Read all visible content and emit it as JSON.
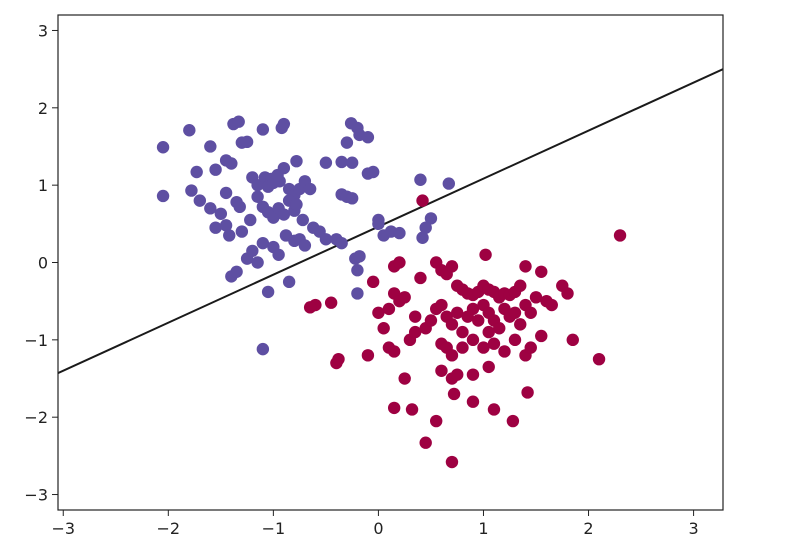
{
  "chart_data": {
    "type": "scatter",
    "title": "",
    "xlabel": "",
    "ylabel": "",
    "xlim": [
      -3.05,
      3.28
    ],
    "ylim": [
      -3.2,
      3.2
    ],
    "xticks": [
      -3,
      -2,
      -1,
      0,
      1,
      2,
      3
    ],
    "yticks": [
      -3,
      -2,
      -1,
      0,
      1,
      2,
      3
    ],
    "xtick_labels": [
      "−3",
      "−2",
      "−1",
      "0",
      "1",
      "2",
      "3"
    ],
    "ytick_labels": [
      "−3",
      "−2",
      "−1",
      "0",
      "1",
      "2",
      "3"
    ],
    "grid": false,
    "legend": "none",
    "decision_boundary": {
      "x": [
        -3.05,
        3.28
      ],
      "y": [
        -1.43,
        2.5
      ],
      "color": "#1a1a1a"
    },
    "series": [
      {
        "color": "#5e4fa2",
        "points": [
          [
            -2.05,
            1.49
          ],
          [
            -2.05,
            0.86
          ],
          [
            -1.8,
            1.71
          ],
          [
            -1.73,
            1.17
          ],
          [
            -1.6,
            1.5
          ],
          [
            -1.55,
            1.2
          ],
          [
            -1.45,
            1.32
          ],
          [
            -1.4,
            1.28
          ],
          [
            -1.38,
            1.79
          ],
          [
            -1.33,
            1.82
          ],
          [
            -1.3,
            1.55
          ],
          [
            -1.25,
            1.56
          ],
          [
            -1.1,
            1.72
          ],
          [
            -0.92,
            1.74
          ],
          [
            -0.9,
            1.79
          ],
          [
            -0.78,
            1.31
          ],
          [
            -0.9,
            1.22
          ],
          [
            -0.94,
            1.05
          ],
          [
            -0.5,
            1.29
          ],
          [
            -0.35,
            1.3
          ],
          [
            -0.26,
            1.8
          ],
          [
            -0.2,
            1.74
          ],
          [
            -0.18,
            1.65
          ],
          [
            -0.1,
            1.62
          ],
          [
            -0.3,
            1.55
          ],
          [
            -0.25,
            1.29
          ],
          [
            -0.1,
            1.15
          ],
          [
            -0.05,
            1.17
          ],
          [
            -1.2,
            1.1
          ],
          [
            -1.15,
            1.0
          ],
          [
            -1.08,
            1.1
          ],
          [
            -1.05,
            0.98
          ],
          [
            -1.02,
            1.08
          ],
          [
            -1.0,
            1.03
          ],
          [
            -0.96,
            1.13
          ],
          [
            -0.85,
            0.95
          ],
          [
            -0.8,
            0.87
          ],
          [
            -0.75,
            0.95
          ],
          [
            -0.7,
            1.05
          ],
          [
            -0.65,
            0.95
          ],
          [
            -1.78,
            0.93
          ],
          [
            -1.7,
            0.8
          ],
          [
            -1.6,
            0.7
          ],
          [
            -1.5,
            0.63
          ],
          [
            -1.45,
            0.9
          ],
          [
            -1.35,
            0.78
          ],
          [
            -1.32,
            0.72
          ],
          [
            -1.22,
            0.55
          ],
          [
            -1.15,
            0.85
          ],
          [
            -1.1,
            0.72
          ],
          [
            -1.05,
            0.65
          ],
          [
            -1.0,
            0.58
          ],
          [
            -0.95,
            0.7
          ],
          [
            -0.9,
            0.62
          ],
          [
            -0.85,
            0.8
          ],
          [
            -0.8,
            0.67
          ],
          [
            -0.78,
            0.75
          ],
          [
            -0.72,
            0.55
          ],
          [
            -0.62,
            0.45
          ],
          [
            -0.56,
            0.4
          ],
          [
            -0.5,
            0.3
          ],
          [
            -0.35,
            0.88
          ],
          [
            -0.3,
            0.85
          ],
          [
            -0.25,
            0.83
          ],
          [
            -1.55,
            0.45
          ],
          [
            -1.45,
            0.48
          ],
          [
            -1.42,
            0.35
          ],
          [
            -1.3,
            0.4
          ],
          [
            -1.25,
            0.05
          ],
          [
            -1.2,
            0.15
          ],
          [
            -1.15,
            0.0
          ],
          [
            -1.1,
            0.25
          ],
          [
            -1.0,
            0.2
          ],
          [
            -0.95,
            0.1
          ],
          [
            -0.88,
            0.35
          ],
          [
            -0.8,
            0.28
          ],
          [
            -0.75,
            0.3
          ],
          [
            -0.7,
            0.22
          ],
          [
            -0.4,
            0.3
          ],
          [
            -0.35,
            0.25
          ],
          [
            -0.22,
            0.05
          ],
          [
            -0.18,
            0.08
          ],
          [
            -0.2,
            -0.1
          ],
          [
            -1.4,
            -0.18
          ],
          [
            -1.35,
            -0.12
          ],
          [
            -1.05,
            -0.38
          ],
          [
            -0.85,
            -0.25
          ],
          [
            -0.2,
            -0.4
          ],
          [
            0.0,
            0.55
          ],
          [
            0.0,
            0.5
          ],
          [
            0.05,
            0.35
          ],
          [
            0.12,
            0.4
          ],
          [
            0.2,
            0.38
          ],
          [
            0.4,
            1.07
          ],
          [
            0.5,
            0.57
          ],
          [
            0.45,
            0.45
          ],
          [
            0.42,
            0.32
          ],
          [
            0.67,
            1.02
          ],
          [
            -1.1,
            -1.12
          ]
        ]
      },
      {
        "color": "#9e0142",
        "points": [
          [
            0.42,
            0.8
          ],
          [
            2.3,
            0.35
          ],
          [
            1.02,
            0.1
          ],
          [
            0.15,
            -0.05
          ],
          [
            0.2,
            0.0
          ],
          [
            0.4,
            -0.2
          ],
          [
            0.55,
            0.0
          ],
          [
            0.6,
            -0.1
          ],
          [
            0.65,
            -0.15
          ],
          [
            0.7,
            -0.05
          ],
          [
            0.75,
            -0.3
          ],
          [
            0.8,
            -0.35
          ],
          [
            0.85,
            -0.4
          ],
          [
            0.9,
            -0.42
          ],
          [
            0.95,
            -0.38
          ],
          [
            1.0,
            -0.3
          ],
          [
            1.05,
            -0.35
          ],
          [
            1.1,
            -0.38
          ],
          [
            1.15,
            -0.45
          ],
          [
            1.2,
            -0.4
          ],
          [
            1.25,
            -0.42
          ],
          [
            1.3,
            -0.38
          ],
          [
            1.35,
            -0.3
          ],
          [
            1.4,
            -0.05
          ],
          [
            1.55,
            -0.12
          ],
          [
            1.5,
            -0.45
          ],
          [
            1.6,
            -0.5
          ],
          [
            1.65,
            -0.55
          ],
          [
            1.75,
            -0.3
          ],
          [
            1.8,
            -0.4
          ],
          [
            -0.6,
            -0.55
          ],
          [
            -0.65,
            -0.58
          ],
          [
            -0.45,
            -0.52
          ],
          [
            -0.05,
            -0.25
          ],
          [
            0.0,
            -0.65
          ],
          [
            0.05,
            -0.85
          ],
          [
            0.1,
            -0.6
          ],
          [
            0.15,
            -0.4
          ],
          [
            0.2,
            -0.5
          ],
          [
            0.25,
            -0.45
          ],
          [
            0.35,
            -0.7
          ],
          [
            0.45,
            -0.85
          ],
          [
            0.5,
            -0.75
          ],
          [
            0.55,
            -0.6
          ],
          [
            0.6,
            -0.55
          ],
          [
            0.65,
            -0.7
          ],
          [
            0.7,
            -0.8
          ],
          [
            0.75,
            -0.65
          ],
          [
            0.8,
            -0.9
          ],
          [
            0.85,
            -0.7
          ],
          [
            0.9,
            -0.6
          ],
          [
            0.95,
            -0.75
          ],
          [
            1.0,
            -0.55
          ],
          [
            1.05,
            -0.65
          ],
          [
            1.1,
            -0.75
          ],
          [
            1.15,
            -0.85
          ],
          [
            1.2,
            -0.6
          ],
          [
            1.25,
            -0.7
          ],
          [
            1.3,
            -0.65
          ],
          [
            1.35,
            -0.8
          ],
          [
            1.4,
            -0.55
          ],
          [
            1.45,
            -0.65
          ],
          [
            1.55,
            -0.95
          ],
          [
            1.85,
            -1.0
          ],
          [
            2.1,
            -1.25
          ],
          [
            -0.4,
            -1.3
          ],
          [
            -0.38,
            -1.25
          ],
          [
            -0.1,
            -1.2
          ],
          [
            0.1,
            -1.1
          ],
          [
            0.15,
            -1.15
          ],
          [
            0.3,
            -1.0
          ],
          [
            0.35,
            -0.9
          ],
          [
            0.6,
            -1.05
          ],
          [
            0.65,
            -1.1
          ],
          [
            0.7,
            -1.2
          ],
          [
            0.8,
            -1.1
          ],
          [
            0.9,
            -1.0
          ],
          [
            1.0,
            -1.1
          ],
          [
            1.05,
            -0.9
          ],
          [
            1.1,
            -1.05
          ],
          [
            1.2,
            -1.15
          ],
          [
            1.3,
            -1.0
          ],
          [
            1.4,
            -1.2
          ],
          [
            1.45,
            -1.1
          ],
          [
            0.25,
            -1.5
          ],
          [
            0.15,
            -1.88
          ],
          [
            0.32,
            -1.9
          ],
          [
            0.6,
            -1.4
          ],
          [
            0.7,
            -1.5
          ],
          [
            0.75,
            -1.45
          ],
          [
            0.9,
            -1.45
          ],
          [
            1.05,
            -1.35
          ],
          [
            0.55,
            -2.05
          ],
          [
            0.72,
            -1.7
          ],
          [
            0.9,
            -1.8
          ],
          [
            1.1,
            -1.9
          ],
          [
            1.28,
            -2.05
          ],
          [
            1.42,
            -1.68
          ],
          [
            0.45,
            -2.33
          ],
          [
            0.7,
            -2.58
          ]
        ]
      }
    ]
  }
}
